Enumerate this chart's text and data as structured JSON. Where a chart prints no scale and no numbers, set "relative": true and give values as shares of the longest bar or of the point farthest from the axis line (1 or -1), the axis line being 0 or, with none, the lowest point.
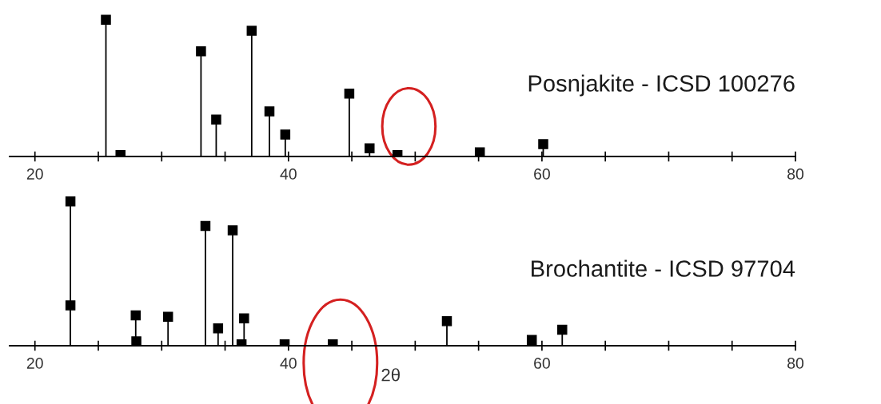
{
  "chart_data": [
    {
      "type": "lollipop",
      "relative": true,
      "xlim": [
        18,
        80
      ],
      "xticks": [
        20,
        {
          "value": 25,
          "label": null
        },
        {
          "value": 30,
          "label": null
        },
        {
          "value": 35,
          "label": null
        },
        40,
        {
          "value": 45,
          "label": null
        },
        {
          "value": 50,
          "label": null
        },
        {
          "value": 55,
          "label": null
        },
        60,
        {
          "value": 65,
          "label": null
        },
        {
          "value": 70,
          "label": null
        },
        {
          "value": 75,
          "label": null
        },
        80
      ],
      "marker": "square",
      "tick_labels": "x",
      "grid": false,
      "legend": false,
      "series": [
        {
          "name": "Posnjakite - ICSD 100276",
          "color": "#000000",
          "x": [
            25.6,
            26.75,
            33.1,
            34.3,
            37.1,
            38.5,
            39.75,
            44.8,
            46.4,
            48.6,
            55.1,
            60.1
          ],
          "values": [
            1,
            0.01,
            0.77,
            0.27,
            0.92,
            0.33,
            0.16,
            0.46,
            0.06,
            0.01,
            0.03,
            0.09
          ]
        }
      ]
    },
    {
      "type": "lollipop",
      "relative": true,
      "xlim": [
        18,
        80
      ],
      "xticks": [
        20,
        {
          "value": 25,
          "label": null
        },
        {
          "value": 30,
          "label": null
        },
        {
          "value": 35,
          "label": null
        },
        40,
        {
          "value": 45,
          "label": null
        },
        {
          "value": 50,
          "label": null
        },
        {
          "value": 55,
          "label": null
        },
        60,
        {
          "value": 65,
          "label": null
        },
        {
          "value": 70,
          "label": null
        },
        {
          "value": 75,
          "label": null
        },
        80
      ],
      "marker": "square",
      "tick_labels": "x",
      "grid": false,
      "legend": false,
      "xlabel": "2θ",
      "series": [
        {
          "name": "Brochantite - ICSD 97704",
          "color": "#000000",
          "x": [
            22.8,
            22.8,
            27.95,
            28.0,
            30.5,
            33.45,
            34.45,
            35.6,
            36.5,
            36.3,
            39.7,
            43.5,
            52.5,
            59.2,
            61.6
          ],
          "values": [
            1,
            0.28,
            0.21,
            0.03,
            0.2,
            0.83,
            0.12,
            0.8,
            0.19,
            0.01,
            0.01,
            0.01,
            0.17,
            0.04,
            0.11
          ]
        }
      ]
    }
  ]
}
